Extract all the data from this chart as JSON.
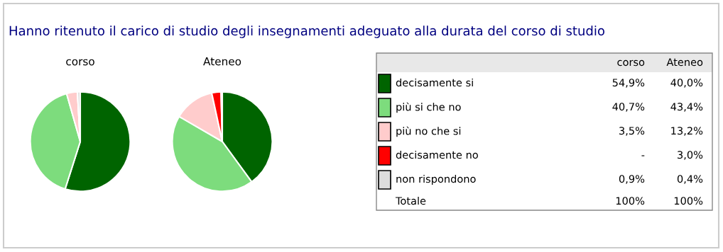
{
  "chart_data": {
    "type": "pie",
    "title": "Hanno ritenuto il carico di studio degli insegnamenti adeguato alla durata del corso di studio",
    "categories": [
      "decisamente si",
      "più si che no",
      "più no che si",
      "decisamente no",
      "non rispondono"
    ],
    "colors": [
      "#006400",
      "#7ddc7d",
      "#ffcccc",
      "#ff0000",
      "#dddddd"
    ],
    "legend": "right",
    "series": [
      {
        "name": "corso",
        "values": [
          54.9,
          40.7,
          3.5,
          0,
          0.9
        ],
        "value_labels": [
          "54,9%",
          "40,7%",
          "3,5%",
          "-",
          "0,9%"
        ]
      },
      {
        "name": "Ateneo",
        "values": [
          40.0,
          43.4,
          13.2,
          3.0,
          0.4
        ],
        "value_labels": [
          "40,0%",
          "43,4%",
          "13,2%",
          "3,0%",
          "0,4%"
        ]
      }
    ],
    "annotations": [
      "Totale"
    ],
    "totals": [
      "100%",
      "100%"
    ]
  }
}
